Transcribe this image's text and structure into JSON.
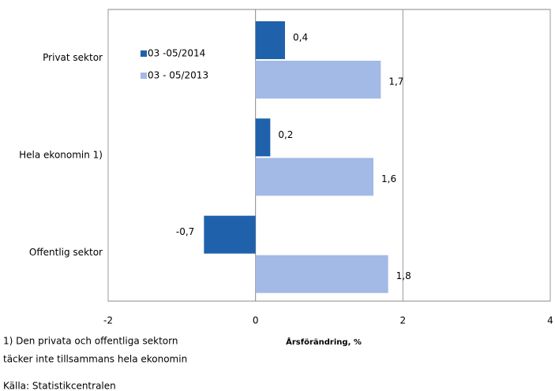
{
  "chart_data": {
    "type": "hbar",
    "categories": [
      "Privat sektor",
      "Hela ekonomin 1)",
      "Offentlig sektor"
    ],
    "series": [
      {
        "name": "03 -05/2014",
        "color": "#1f62ab",
        "values": [
          0.4,
          0.2,
          -0.7
        ],
        "value_labels": [
          "0,4",
          "0,2",
          "-0,7"
        ]
      },
      {
        "name": "03 - 05/2013",
        "color": "#a3b9e6",
        "values": [
          1.7,
          1.6,
          1.8
        ],
        "value_labels": [
          "1,7",
          "1,6",
          "1,8"
        ]
      }
    ],
    "xlim": [
      -2,
      4
    ],
    "xticks": [
      -2,
      0,
      2,
      4
    ],
    "grid": true,
    "xlabel": "Årsförändring, %",
    "notes": [
      "1) Den privata och offentliga sektorn",
      "täcker inte tillsammans hela ekonomin",
      "Källa: Statistikcentralen"
    ]
  }
}
